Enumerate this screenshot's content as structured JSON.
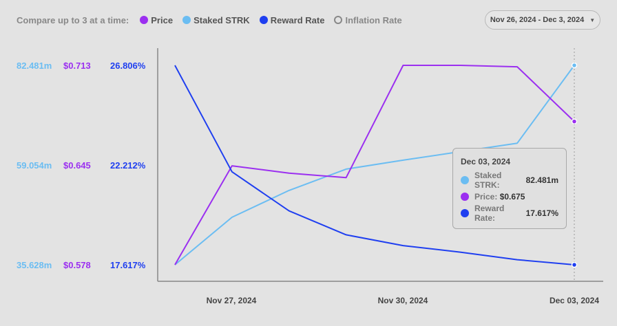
{
  "legend": {
    "lead": "Compare up to 3 at a time:",
    "items": [
      {
        "label": "Price",
        "color": "#9b2ff0",
        "active": true
      },
      {
        "label": "Staked STRK",
        "color": "#6bbdf2",
        "active": true
      },
      {
        "label": "Reward Rate",
        "color": "#1f3ff0",
        "active": true
      },
      {
        "label": "Inflation Rate",
        "color": "#888888",
        "active": false
      }
    ]
  },
  "date_range": {
    "label": "Nov 26, 2024 - Dec 3, 2024",
    "icon": "chevron-down-icon"
  },
  "y_ticks": {
    "staked": [
      "82.481m",
      "59.054m",
      "35.628m"
    ],
    "price": [
      "$0.713",
      "$0.645",
      "$0.578"
    ],
    "reward": [
      "26.806%",
      "22.212%",
      "17.617%"
    ]
  },
  "x_ticks": [
    "Nov 27, 2024",
    "Nov 30, 2024",
    "Dec 03, 2024"
  ],
  "tooltip": {
    "title": "Dec 03, 2024",
    "rows": [
      {
        "label": "Staked STRK:",
        "value": "82.481m",
        "color": "#6bbdf2"
      },
      {
        "label": "Price:",
        "value": "$0.675",
        "color": "#9b2ff0"
      },
      {
        "label": "Reward Rate:",
        "value": "17.617%",
        "color": "#1f3ff0"
      }
    ]
  },
  "chart_data": {
    "type": "line",
    "x": [
      "Nov 26, 2024",
      "Nov 27, 2024",
      "Nov 28, 2024",
      "Nov 29, 2024",
      "Nov 30, 2024",
      "Dec 01, 2024",
      "Dec 02, 2024",
      "Dec 03, 2024"
    ],
    "series": [
      {
        "name": "Staked STRK",
        "unit": "m",
        "color": "#6bbdf2",
        "ylim": [
          35.628,
          82.481
        ],
        "values": [
          35.63,
          46.8,
          53.1,
          58.1,
          60.2,
          62.2,
          64.2,
          82.481
        ]
      },
      {
        "name": "Price",
        "unit": "$",
        "color": "#9b2ff0",
        "ylim": [
          0.578,
          0.713
        ],
        "values": [
          0.578,
          0.645,
          0.64,
          0.637,
          0.713,
          0.713,
          0.712,
          0.675
        ]
      },
      {
        "name": "Reward Rate",
        "unit": "%",
        "color": "#1f3ff0",
        "ylim": [
          17.617,
          26.806
        ],
        "values": [
          26.806,
          21.9,
          20.1,
          19.0,
          18.5,
          18.2,
          17.85,
          17.617
        ]
      }
    ]
  }
}
